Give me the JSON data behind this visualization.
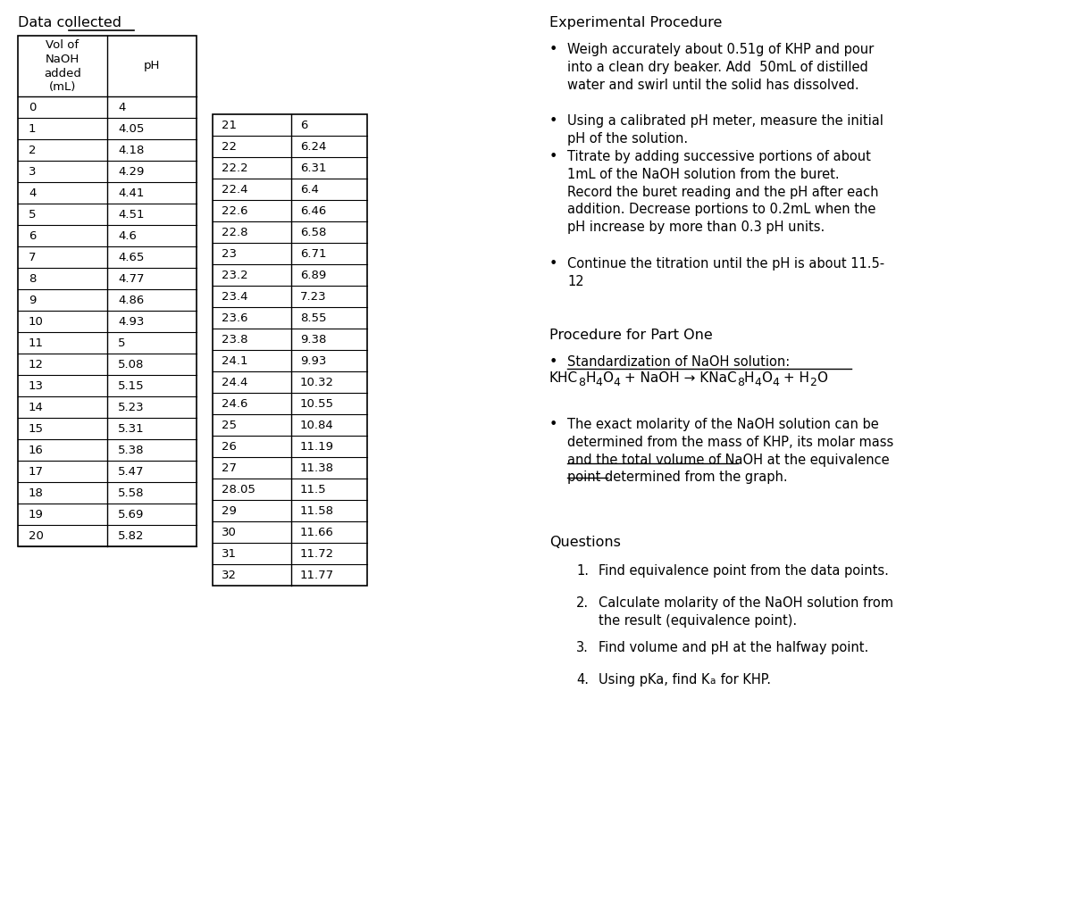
{
  "title_left": "Data collected",
  "title_right": "Experimental Procedure",
  "table1_header": [
    "Vol of\nNaOH\nadded\n(mL)",
    "pH"
  ],
  "table1_data": [
    [
      "0",
      "4"
    ],
    [
      "1",
      "4.05"
    ],
    [
      "2",
      "4.18"
    ],
    [
      "3",
      "4.29"
    ],
    [
      "4",
      "4.41"
    ],
    [
      "5",
      "4.51"
    ],
    [
      "6",
      "4.6"
    ],
    [
      "7",
      "4.65"
    ],
    [
      "8",
      "4.77"
    ],
    [
      "9",
      "4.86"
    ],
    [
      "10",
      "4.93"
    ],
    [
      "11",
      "5"
    ],
    [
      "12",
      "5.08"
    ],
    [
      "13",
      "5.15"
    ],
    [
      "14",
      "5.23"
    ],
    [
      "15",
      "5.31"
    ],
    [
      "16",
      "5.38"
    ],
    [
      "17",
      "5.47"
    ],
    [
      "18",
      "5.58"
    ],
    [
      "19",
      "5.69"
    ],
    [
      "20",
      "5.82"
    ]
  ],
  "table2_data": [
    [
      "21",
      "6"
    ],
    [
      "22",
      "6.24"
    ],
    [
      "22.2",
      "6.31"
    ],
    [
      "22.4",
      "6.4"
    ],
    [
      "22.6",
      "6.46"
    ],
    [
      "22.8",
      "6.58"
    ],
    [
      "23",
      "6.71"
    ],
    [
      "23.2",
      "6.89"
    ],
    [
      "23.4",
      "7.23"
    ],
    [
      "23.6",
      "8.55"
    ],
    [
      "23.8",
      "9.38"
    ],
    [
      "24.1",
      "9.93"
    ],
    [
      "24.4",
      "10.32"
    ],
    [
      "24.6",
      "10.55"
    ],
    [
      "25",
      "10.84"
    ],
    [
      "26",
      "11.19"
    ],
    [
      "27",
      "11.38"
    ],
    [
      "28.05",
      "11.5"
    ],
    [
      "29",
      "11.58"
    ],
    [
      "30",
      "11.66"
    ],
    [
      "31",
      "11.72"
    ],
    [
      "32",
      "11.77"
    ]
  ],
  "exp_procedure_title": "Experimental Procedure",
  "bullet1": "Weigh accurately about 0.51g of KHP and pour\ninto a clean dry beaker. Add  50mL of distilled\nwater and swirl until the solid has dissolved.",
  "bullet2": "Using a calibrated pH meter, measure the initial\npH of the solution.",
  "bullet3": "Titrate by adding successive portions of about\n1mL of the NaOH solution from the buret.\nRecord the buret reading and the pH after each\naddition. Decrease portions to 0.2mL when the\npH increase by more than 0.3 pH units.",
  "bullet4": "Continue the titration until the pH is about 11.5-\n12",
  "procedure_part_one_title": "Procedure for Part One",
  "std_bullet": "Standardization of NaOH solution:",
  "equation_parts": [
    "KHC",
    "8",
    "H",
    "4",
    "O",
    "4",
    " + NaOH → KNaC",
    "8",
    "H",
    "4",
    "O",
    "4",
    " + H",
    "2",
    "O"
  ],
  "molarity_bullet_line1": "The exact molarity of the NaOH solution can be",
  "molarity_bullet_line2": "determined from the mass of KHP, its molar mass",
  "molarity_bullet_line3": "and the total volume of NaOH at the equivalence",
  "molarity_bullet_line4": "point determined from the graph.",
  "questions_title": "Questions",
  "q1": "Find equivalence point from the data points.",
  "q2a": "Calculate molarity of the NaOH solution from",
  "q2b": "the result (equivalence point).",
  "q3": "Find volume and pH at the halfway point.",
  "q4a": "Using pKa, find K",
  "q4b": " for KHP.",
  "bg_color": "#ffffff",
  "text_color": "#000000",
  "table_line_color": "#000000",
  "sans_font": "DejaVu Sans",
  "mono_font": "DejaVu Sans Mono"
}
